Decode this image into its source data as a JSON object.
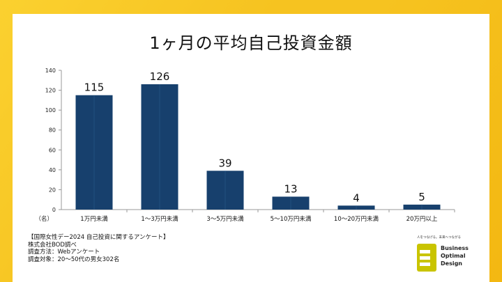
{
  "title": "1ヶ月の平均自己投資金額",
  "chart_data": {
    "type": "bar",
    "categories": [
      "1万円未満",
      "1～3万円未満",
      "3～5万円未満",
      "5～10万円未満",
      "10～20万円未満",
      "20万円以上"
    ],
    "values": [
      115,
      126,
      39,
      13,
      4,
      5
    ],
    "ylim": [
      0,
      140
    ],
    "yticks": [
      0,
      20,
      40,
      60,
      80,
      100,
      120,
      140
    ],
    "unit_label": "（名）",
    "bar_color": "#17406d",
    "grid": false,
    "data_labels": true
  },
  "notes": [
    "【国際女性デー2024 自己投資に関するアンケート】",
    "株式会社BOD調べ",
    "調査方法：Webアンケート",
    "調査対象：20～50代の男女302名"
  ],
  "logo": {
    "tagline": "人をつなげる。未来へつながる",
    "words": [
      "Business",
      "Optimal",
      "Design"
    ],
    "color": "#c9c400"
  }
}
